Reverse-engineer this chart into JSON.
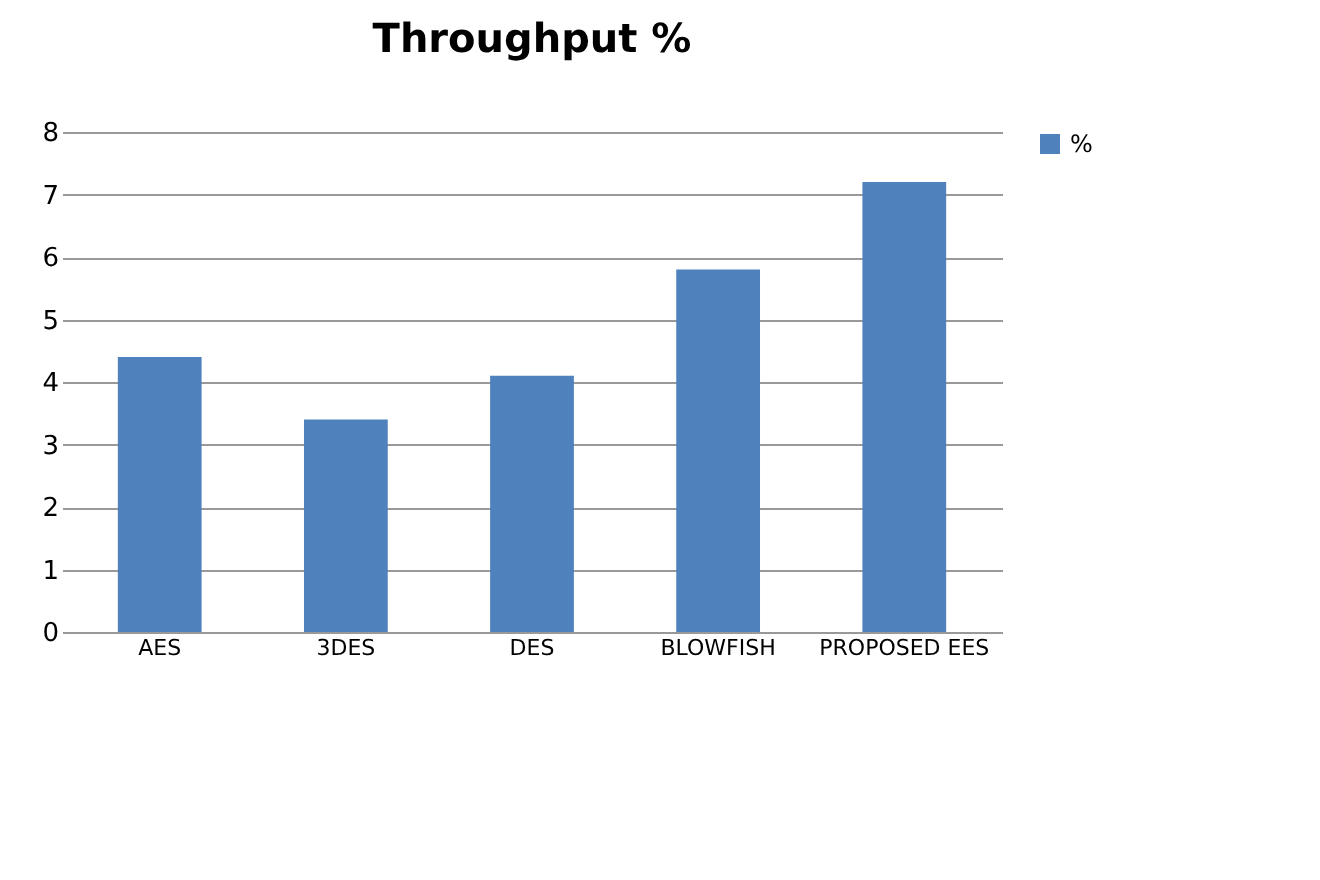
{
  "chart_data": {
    "type": "bar",
    "title": "Throughput %",
    "categories": [
      "AES",
      "3DES",
      "DES",
      "BLOWFISH",
      "PROPOSED EES"
    ],
    "series": [
      {
        "name": "%",
        "color": "#4f81bd",
        "values": [
          4.4,
          3.4,
          4.1,
          5.8,
          7.2
        ]
      }
    ],
    "ylim": [
      0,
      8
    ],
    "yticks": [
      0,
      1,
      2,
      3,
      4,
      5,
      6,
      7,
      8
    ],
    "grid": "y",
    "legend": "right"
  }
}
